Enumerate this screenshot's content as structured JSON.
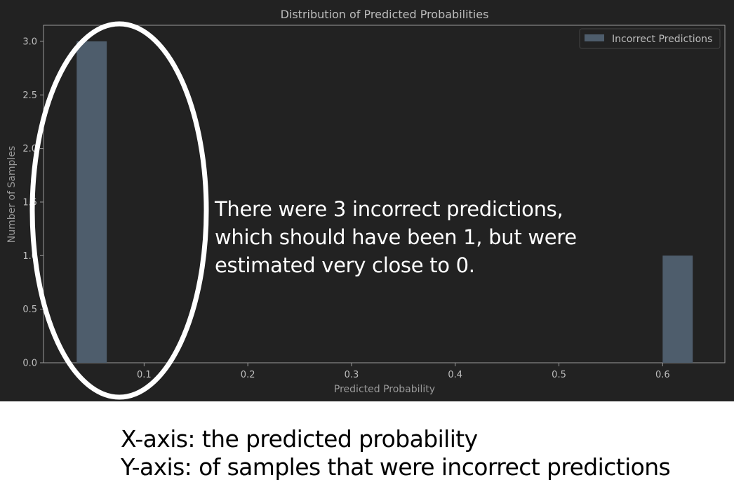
{
  "chart_data": {
    "type": "bar",
    "title": "Distribution of Predicted Probabilities",
    "xlabel": "Predicted Probability",
    "ylabel": "Number of Samples",
    "xlim": [
      0.003,
      0.66
    ],
    "ylim": [
      0,
      3.15
    ],
    "xticks": [
      "0.1",
      "0.2",
      "0.3",
      "0.4",
      "0.5",
      "0.6"
    ],
    "yticks": [
      "0.0",
      "0.5",
      "1.0",
      "1.5",
      "2.0",
      "2.5",
      "3.0"
    ],
    "bin_width": 0.029,
    "series": [
      {
        "name": "Incorrect Predictions",
        "bars": [
          {
            "x_start": 0.035,
            "x_end": 0.064,
            "count": 3
          },
          {
            "x_start": 0.6,
            "x_end": 0.629,
            "count": 1
          }
        ]
      }
    ],
    "legend": "top-right",
    "grid": false
  },
  "colors": {
    "background": "#222222",
    "bar": "#4e5d6c",
    "axis": "#9a9a9a",
    "text": "#bdbdbd",
    "annotation": "#ffffff"
  },
  "annotation": {
    "lines": [
      "There were 3 incorrect predictions,",
      "which should have been 1, but were",
      "estimated very close to 0."
    ]
  },
  "caption": {
    "x_axis": "X-axis: the predicted probability",
    "y_axis": "Y-axis: of samples that were incorrect predictions"
  }
}
